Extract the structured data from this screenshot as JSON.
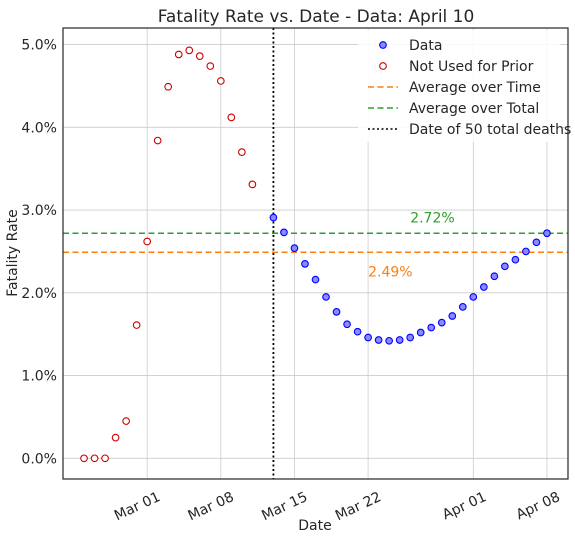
{
  "chart_data": {
    "type": "scatter",
    "title": "Fatality Rate vs. Date - Data: April 10",
    "xlabel": "Date",
    "ylabel": "Fatality Rate",
    "xlim": [
      "2020-02-22",
      "2020-04-10"
    ],
    "ylim": [
      -0.25,
      5.2
    ],
    "x_ticks": [
      "2020-03-01",
      "2020-03-08",
      "2020-03-15",
      "2020-03-22",
      "2020-04-01",
      "2020-04-08"
    ],
    "x_tick_labels": [
      "Mar 01",
      "Mar 08",
      "Mar 15",
      "Mar 22",
      "Apr 01",
      "Apr 08"
    ],
    "y_ticks": [
      0,
      1,
      2,
      3,
      4,
      5
    ],
    "y_tick_labels": [
      "0.0%",
      "1.0%",
      "2.0%",
      "3.0%",
      "4.0%",
      "5.0%"
    ],
    "grid": true,
    "legend_position": "top-right",
    "series": [
      {
        "name": "Data",
        "marker": "filled-circle",
        "color": "#0000ff",
        "fill": "#8a8aff",
        "points": [
          [
            "2020-03-13",
            2.91
          ],
          [
            "2020-03-14",
            2.73
          ],
          [
            "2020-03-15",
            2.54
          ],
          [
            "2020-03-16",
            2.35
          ],
          [
            "2020-03-17",
            2.16
          ],
          [
            "2020-03-18",
            1.95
          ],
          [
            "2020-03-19",
            1.77
          ],
          [
            "2020-03-20",
            1.62
          ],
          [
            "2020-03-21",
            1.53
          ],
          [
            "2020-03-22",
            1.46
          ],
          [
            "2020-03-23",
            1.43
          ],
          [
            "2020-03-24",
            1.42
          ],
          [
            "2020-03-25",
            1.43
          ],
          [
            "2020-03-26",
            1.46
          ],
          [
            "2020-03-27",
            1.52
          ],
          [
            "2020-03-28",
            1.58
          ],
          [
            "2020-03-29",
            1.64
          ],
          [
            "2020-03-30",
            1.72
          ],
          [
            "2020-03-31",
            1.83
          ],
          [
            "2020-04-01",
            1.95
          ],
          [
            "2020-04-02",
            2.07
          ],
          [
            "2020-04-03",
            2.2
          ],
          [
            "2020-04-04",
            2.32
          ],
          [
            "2020-04-05",
            2.4
          ],
          [
            "2020-04-06",
            2.5
          ],
          [
            "2020-04-07",
            2.61
          ],
          [
            "2020-04-08",
            2.72
          ]
        ]
      },
      {
        "name": "Not Used for Prior",
        "marker": "open-circle",
        "color": "#cc0000",
        "points": [
          [
            "2020-02-24",
            0.0
          ],
          [
            "2020-02-25",
            0.0
          ],
          [
            "2020-02-26",
            0.0
          ],
          [
            "2020-02-27",
            0.25
          ],
          [
            "2020-02-28",
            0.45
          ],
          [
            "2020-02-29",
            1.61
          ],
          [
            "2020-03-01",
            2.62
          ],
          [
            "2020-03-02",
            3.84
          ],
          [
            "2020-03-03",
            4.49
          ],
          [
            "2020-03-04",
            4.88
          ],
          [
            "2020-03-05",
            4.93
          ],
          [
            "2020-03-06",
            4.86
          ],
          [
            "2020-03-07",
            4.74
          ],
          [
            "2020-03-08",
            4.56
          ],
          [
            "2020-03-09",
            4.12
          ],
          [
            "2020-03-10",
            3.7
          ],
          [
            "2020-03-11",
            3.31
          ]
        ]
      }
    ],
    "reference_lines": [
      {
        "name": "Average over Time",
        "orientation": "horizontal",
        "value": 2.49,
        "label": "2.49%",
        "color": "#ff7f0e",
        "style": "dashed"
      },
      {
        "name": "Average over Total",
        "orientation": "horizontal",
        "value": 2.72,
        "label": "2.72%",
        "color": "#2ca02c",
        "style": "dashed"
      },
      {
        "name": "Date of 50 total deaths",
        "orientation": "vertical",
        "value": "2020-03-13",
        "color": "#000000",
        "style": "dotted"
      }
    ],
    "value_labels": [
      {
        "text": "2.72%",
        "x": "2020-03-26",
        "y": 2.85,
        "color": "#2ca02c"
      },
      {
        "text": "2.49%",
        "x": "2020-03-22",
        "y": 2.2,
        "color": "#ff7f0e"
      }
    ]
  }
}
